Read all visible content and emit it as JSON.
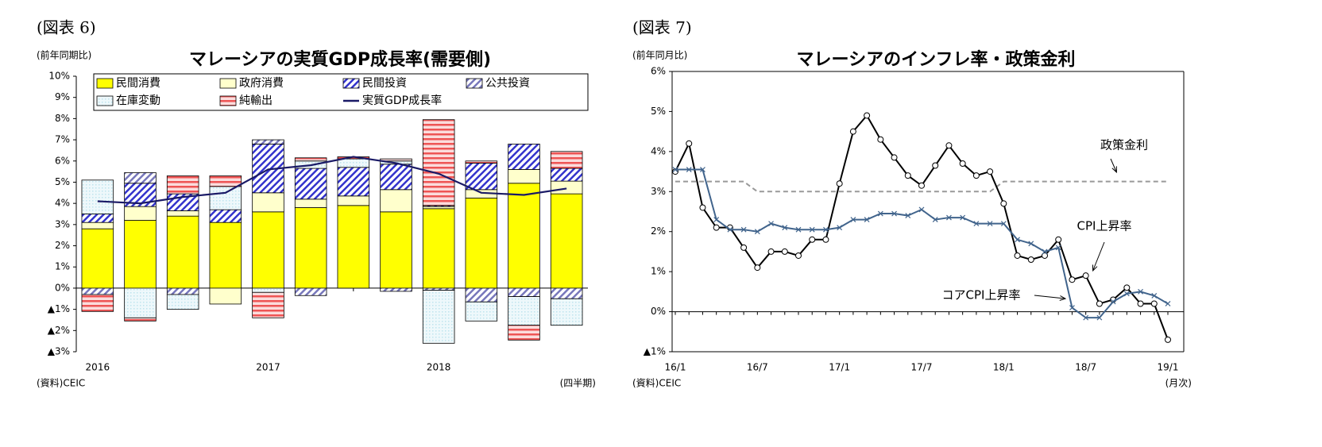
{
  "chart_data": [
    {
      "type": "bar",
      "figure_label": "(図表 6)",
      "unit_label": "(前年同期比)",
      "title": "マレーシアの実質GDP成長率(需要側)",
      "source": "(資料)CEIC",
      "freq_label": "(四半期)",
      "categories": [
        "2016",
        null,
        null,
        null,
        "2017",
        null,
        null,
        null,
        "2018",
        null,
        null,
        null
      ],
      "ylim": [
        -3,
        10
      ],
      "yticks": [
        {
          "value": -3,
          "label": "▲3%"
        },
        {
          "value": -2,
          "label": "▲2%"
        },
        {
          "value": -1,
          "label": "▲1%"
        },
        {
          "value": 0,
          "label": "0%"
        },
        {
          "value": 1,
          "label": "1%"
        },
        {
          "value": 2,
          "label": "2%"
        },
        {
          "value": 3,
          "label": "3%"
        },
        {
          "value": 4,
          "label": "4%"
        },
        {
          "value": 5,
          "label": "5%"
        },
        {
          "value": 6,
          "label": "6%"
        },
        {
          "value": 7,
          "label": "7%"
        },
        {
          "value": 8,
          "label": "8%"
        },
        {
          "value": 9,
          "label": "9%"
        },
        {
          "value": 10,
          "label": "10%"
        }
      ],
      "series": [
        {
          "name": "民間消費",
          "type": "bar",
          "color": "#ffff00",
          "pattern": "solid",
          "values": [
            2.8,
            3.2,
            3.4,
            3.1,
            3.6,
            3.8,
            3.9,
            3.6,
            3.75,
            4.25,
            4.95,
            4.45
          ]
        },
        {
          "name": "政府消費",
          "type": "bar",
          "color": "#ffffcc",
          "pattern": "solid",
          "values": [
            0.3,
            0.65,
            0.25,
            -0.75,
            0.9,
            0.4,
            0.45,
            1.05,
            0.1,
            0.4,
            0.65,
            0.6
          ]
        },
        {
          "name": "民間投資",
          "type": "bar",
          "color": "#3333cc",
          "pattern": "diagonal",
          "values": [
            0.4,
            1.1,
            0.8,
            0.6,
            2.3,
            1.45,
            1.35,
            1.2,
            0.05,
            1.25,
            1.2,
            0.6
          ]
        },
        {
          "name": "公共投資",
          "type": "bar",
          "color": "#7777bb",
          "pattern": "diagonal",
          "values": [
            -0.3,
            0.5,
            -0.3,
            0,
            0.2,
            -0.35,
            0,
            -0.15,
            -0.1,
            -0.65,
            -0.4,
            -0.5
          ]
        },
        {
          "name": "在庫変動",
          "type": "bar",
          "color": "#bfe4ee",
          "pattern": "dots",
          "values": [
            1.6,
            -1.4,
            -0.7,
            1.1,
            -0.2,
            0.35,
            0.4,
            0.15,
            -2.5,
            -0.9,
            -1.35,
            -1.25
          ]
        },
        {
          "name": "純輸出",
          "type": "bar",
          "color": "#ee5555",
          "pattern": "horizontal",
          "values": [
            -0.8,
            -0.15,
            0.85,
            0.5,
            -1.2,
            0.15,
            0.1,
            0.1,
            4.05,
            0.1,
            -0.7,
            0.8
          ]
        },
        {
          "name": "実質GDP成長率",
          "type": "line",
          "color": "#1a1a66",
          "values": [
            4.1,
            4.0,
            4.3,
            4.5,
            5.6,
            5.8,
            6.2,
            5.9,
            5.4,
            4.5,
            4.4,
            4.7
          ]
        }
      ]
    },
    {
      "type": "line",
      "figure_label": "(図表 7)",
      "unit_label": "(前年同月比)",
      "title": "マレーシアのインフレ率・政策金利",
      "source": "(資料)CEIC",
      "freq_label": "(月次)",
      "categories": [
        "16/1",
        null,
        null,
        null,
        null,
        null,
        "16/7",
        null,
        null,
        null,
        null,
        null,
        "17/1",
        null,
        null,
        null,
        null,
        null,
        "17/7",
        null,
        null,
        null,
        null,
        null,
        "18/1",
        null,
        null,
        null,
        null,
        null,
        "18/7",
        null,
        null,
        null,
        null,
        null,
        "19/1"
      ],
      "ylim": [
        -1,
        6
      ],
      "yticks": [
        {
          "value": -1,
          "label": "▲1%"
        },
        {
          "value": 0,
          "label": "0%"
        },
        {
          "value": 1,
          "label": "1%"
        },
        {
          "value": 2,
          "label": "2%"
        },
        {
          "value": 3,
          "label": "3%"
        },
        {
          "value": 4,
          "label": "4%"
        },
        {
          "value": 5,
          "label": "5%"
        },
        {
          "value": 6,
          "label": "6%"
        }
      ],
      "series": [
        {
          "name": "政策金利",
          "color": "#999999",
          "style": "dashed",
          "marker": "none",
          "values": [
            3.25,
            3.25,
            3.25,
            3.25,
            3.25,
            3.25,
            3.0,
            3.0,
            3.0,
            3.0,
            3.0,
            3.0,
            3.0,
            3.0,
            3.0,
            3.0,
            3.0,
            3.0,
            3.0,
            3.0,
            3.0,
            3.0,
            3.0,
            3.0,
            3.25,
            3.25,
            3.25,
            3.25,
            3.25,
            3.25,
            3.25,
            3.25,
            3.25,
            3.25,
            3.25,
            3.25,
            3.25
          ]
        },
        {
          "name": "CPI上昇率",
          "color": "#000000",
          "style": "solid",
          "marker": "circle",
          "values": [
            3.5,
            4.2,
            2.6,
            2.1,
            2.1,
            1.6,
            1.1,
            1.5,
            1.5,
            1.4,
            1.8,
            1.8,
            3.2,
            4.5,
            4.9,
            4.3,
            3.85,
            3.4,
            3.15,
            3.65,
            4.15,
            3.7,
            3.4,
            3.5,
            2.7,
            1.4,
            1.3,
            1.4,
            1.8,
            0.8,
            0.9,
            0.2,
            0.3,
            0.6,
            0.2,
            0.2,
            -0.7
          ]
        },
        {
          "name": "コアCPI上昇率",
          "color": "#41648c",
          "style": "solid",
          "marker": "x",
          "values": [
            3.55,
            3.55,
            3.55,
            2.3,
            2.05,
            2.05,
            2.0,
            2.2,
            2.1,
            2.05,
            2.05,
            2.05,
            2.1,
            2.3,
            2.3,
            2.45,
            2.45,
            2.4,
            2.55,
            2.3,
            2.35,
            2.35,
            2.2,
            2.2,
            2.2,
            1.8,
            1.7,
            1.5,
            1.6,
            0.1,
            -0.15,
            -0.15,
            0.25,
            0.45,
            0.5,
            0.4,
            0.2
          ]
        }
      ]
    }
  ]
}
